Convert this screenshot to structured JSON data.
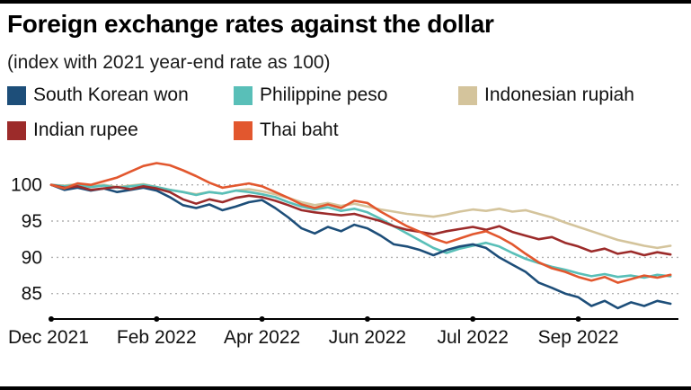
{
  "header": {
    "title": "Foreign exchange rates against the dollar",
    "subtitle": "(index with 2021 year-end rate as 100)"
  },
  "chart_data": {
    "type": "line",
    "title": "Foreign exchange rates against the dollar",
    "subtitle": "(index with 2021 year-end rate as 100)",
    "x_unit": "months since Dec 2021",
    "xlim": [
      0,
      11.9
    ],
    "ylim": [
      81.5,
      103.8
    ],
    "yticks": [
      85,
      90,
      95,
      100
    ],
    "xticks": {
      "positions": [
        0,
        2,
        4,
        6,
        8,
        10
      ],
      "labels": [
        "Dec 2021",
        "Feb 2022",
        "Apr 2022",
        "Jun 2022",
        "Jul 2022",
        "Sep 2022"
      ]
    },
    "grid": "horizontal-dotted",
    "legend_position": "top",
    "x": [
      0,
      0.25,
      0.5,
      0.75,
      1,
      1.25,
      1.5,
      1.75,
      2,
      2.25,
      2.5,
      2.75,
      3,
      3.25,
      3.5,
      3.75,
      4,
      4.25,
      4.5,
      4.75,
      5,
      5.25,
      5.5,
      5.75,
      6,
      6.25,
      6.5,
      6.75,
      7,
      7.25,
      7.5,
      7.75,
      8,
      8.25,
      8.5,
      8.75,
      9,
      9.25,
      9.5,
      9.75,
      10,
      10.25,
      10.5,
      10.75,
      11,
      11.25,
      11.5,
      11.75
    ],
    "series": [
      {
        "name": "South Korean won",
        "color": "#1d4e79",
        "values": [
          100,
          99.3,
          99.6,
          99.2,
          99.5,
          99,
          99.3,
          99.6,
          99.2,
          98.3,
          97.2,
          96.8,
          97.3,
          96.5,
          97,
          97.6,
          97.9,
          96.8,
          95.5,
          94,
          93.3,
          94.2,
          93.6,
          94.5,
          94,
          93,
          91.8,
          91.5,
          91,
          90.3,
          91,
          91.5,
          91.8,
          91.3,
          90,
          89,
          88,
          86.5,
          85.8,
          85,
          84.5,
          83.3,
          84,
          83,
          83.8,
          83.3,
          84,
          83.6
        ]
      },
      {
        "name": "Philippine peso",
        "color": "#59bfb8",
        "values": [
          100,
          99.8,
          100,
          99.7,
          99.9,
          99.6,
          99.8,
          100,
          99.7,
          99.3,
          99,
          98.6,
          99,
          98.8,
          99.2,
          99,
          98.7,
          98.3,
          97.6,
          97,
          96.6,
          96.9,
          96.4,
          96.7,
          96.2,
          95.3,
          94.3,
          93.3,
          92.3,
          91.3,
          90.6,
          91.2,
          91.6,
          92,
          91.5,
          90.6,
          89.8,
          89.2,
          88.7,
          88.3,
          87.8,
          87.4,
          87.7,
          87.3,
          87.5,
          87.2,
          87.6,
          87.4
        ]
      },
      {
        "name": "Indonesian rupiah",
        "color": "#d4c49c",
        "values": [
          100,
          99.9,
          100.1,
          99.8,
          100,
          99.7,
          99.9,
          100.1,
          99.7,
          99.3,
          99,
          98.7,
          99,
          98.8,
          99.2,
          99.4,
          99.1,
          98.7,
          98.2,
          97.6,
          97.2,
          97.5,
          97.1,
          97.4,
          97,
          96.6,
          96.3,
          96,
          95.8,
          95.6,
          95.9,
          96.3,
          96.6,
          96.4,
          96.7,
          96.3,
          96.5,
          96,
          95.5,
          94.8,
          94.2,
          93.6,
          93,
          92.4,
          92,
          91.6,
          91.3,
          91.6
        ]
      },
      {
        "name": "Indian rupee",
        "color": "#9c2b2a",
        "values": [
          100,
          99.6,
          99.8,
          99.3,
          99.5,
          99.7,
          99.4,
          99.8,
          99.5,
          99,
          98,
          97.4,
          98,
          97.6,
          98.2,
          98.5,
          98.3,
          97.8,
          97.2,
          96.5,
          96.2,
          96,
          95.8,
          96,
          95.5,
          95,
          94.3,
          93.8,
          93.5,
          93.2,
          93.6,
          93.9,
          94.2,
          93.8,
          94.3,
          93.5,
          93,
          92.5,
          92.8,
          92,
          91.5,
          90.8,
          91.2,
          90.5,
          90.8,
          90.3,
          90.7,
          90.4
        ]
      },
      {
        "name": "Thai baht",
        "color": "#e2572e",
        "values": [
          100,
          99.5,
          100.2,
          100,
          100.5,
          101,
          101.8,
          102.6,
          103,
          102.7,
          102,
          101.2,
          100.3,
          99.6,
          99.9,
          100.2,
          99.8,
          99,
          98.2,
          97.3,
          96.8,
          97.3,
          96.8,
          97.8,
          97.5,
          96.3,
          95.3,
          94.3,
          93.5,
          92.6,
          92,
          92.6,
          93.2,
          93.6,
          92.8,
          91.8,
          90.5,
          89.3,
          88.5,
          88,
          87.3,
          86.8,
          87.3,
          86.5,
          87,
          87.5,
          87.2,
          87.6
        ]
      }
    ]
  }
}
